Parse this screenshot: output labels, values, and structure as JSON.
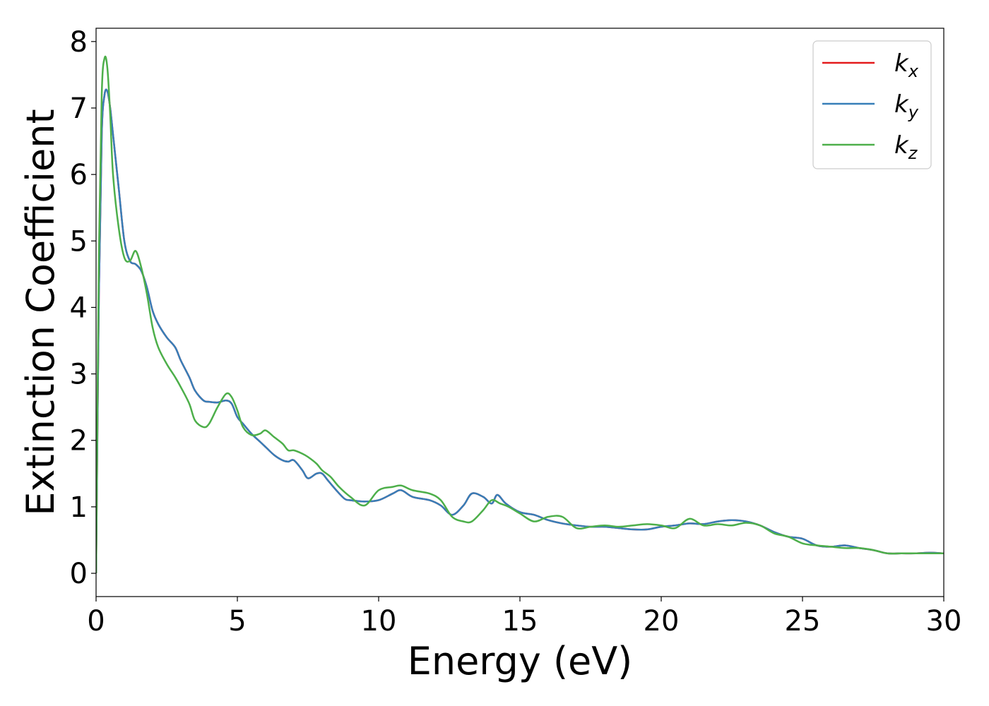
{
  "chart_data": {
    "type": "line",
    "title": "",
    "xlabel": "Energy (eV)",
    "ylabel": "Extinction Coefficient",
    "xlim": [
      0,
      30
    ],
    "ylim": [
      -0.35,
      8.2
    ],
    "xticks": [
      0,
      5,
      10,
      15,
      20,
      25,
      30
    ],
    "yticks": [
      0,
      1,
      2,
      3,
      4,
      5,
      6,
      7,
      8
    ],
    "grid": false,
    "legend_position": "top-right",
    "series": [
      {
        "name": "k",
        "subscript": "x",
        "color": "#e41a1c",
        "x": [
          0,
          0.1,
          0.2,
          0.3,
          0.4,
          0.5,
          0.6,
          0.8,
          1.0,
          1.2,
          1.4,
          1.6,
          1.8,
          2.0,
          2.2,
          2.5,
          2.8,
          3.0,
          3.3,
          3.5,
          3.8,
          4.0,
          4.3,
          4.6,
          4.8,
          5.0,
          5.2,
          5.5,
          5.8,
          6.0,
          6.3,
          6.6,
          6.8,
          7.0,
          7.3,
          7.5,
          7.8,
          8.0,
          8.2,
          8.5,
          8.8,
          9.0,
          9.5,
          10.0,
          10.5,
          10.8,
          11.2,
          11.8,
          12.2,
          12.6,
          13.0,
          13.3,
          13.7,
          14.0,
          14.2,
          14.5,
          15.0,
          15.5,
          16.0,
          16.5,
          17.0,
          17.5,
          18.0,
          18.5,
          19.0,
          19.5,
          20.0,
          20.5,
          21.0,
          21.5,
          22.0,
          22.5,
          23.0,
          23.5,
          24.0,
          24.5,
          25.0,
          25.5,
          26.0,
          26.5,
          27.0,
          27.5,
          28.0,
          28.5,
          29.0,
          29.5,
          30.0
        ],
        "y": [
          0.0,
          4.2,
          6.6,
          7.2,
          7.25,
          7.0,
          6.6,
          5.8,
          5.0,
          4.7,
          4.65,
          4.55,
          4.3,
          3.95,
          3.75,
          3.55,
          3.4,
          3.2,
          2.95,
          2.75,
          2.6,
          2.58,
          2.57,
          2.6,
          2.55,
          2.35,
          2.25,
          2.1,
          1.98,
          1.9,
          1.78,
          1.7,
          1.68,
          1.7,
          1.55,
          1.43,
          1.5,
          1.5,
          1.4,
          1.25,
          1.12,
          1.1,
          1.08,
          1.1,
          1.2,
          1.25,
          1.15,
          1.1,
          1.02,
          0.88,
          1.02,
          1.2,
          1.15,
          1.05,
          1.18,
          1.05,
          0.92,
          0.88,
          0.8,
          0.75,
          0.72,
          0.7,
          0.7,
          0.68,
          0.66,
          0.66,
          0.7,
          0.72,
          0.75,
          0.74,
          0.78,
          0.8,
          0.78,
          0.72,
          0.62,
          0.55,
          0.52,
          0.42,
          0.4,
          0.42,
          0.38,
          0.35,
          0.3,
          0.3,
          0.3,
          0.31,
          0.3
        ]
      },
      {
        "name": "k",
        "subscript": "y",
        "color": "#377eb8",
        "x": [
          0,
          0.1,
          0.2,
          0.3,
          0.4,
          0.5,
          0.6,
          0.8,
          1.0,
          1.2,
          1.4,
          1.6,
          1.8,
          2.0,
          2.2,
          2.5,
          2.8,
          3.0,
          3.3,
          3.5,
          3.8,
          4.0,
          4.3,
          4.6,
          4.8,
          5.0,
          5.2,
          5.5,
          5.8,
          6.0,
          6.3,
          6.6,
          6.8,
          7.0,
          7.3,
          7.5,
          7.8,
          8.0,
          8.2,
          8.5,
          8.8,
          9.0,
          9.5,
          10.0,
          10.5,
          10.8,
          11.2,
          11.8,
          12.2,
          12.6,
          13.0,
          13.3,
          13.7,
          14.0,
          14.2,
          14.5,
          15.0,
          15.5,
          16.0,
          16.5,
          17.0,
          17.5,
          18.0,
          18.5,
          19.0,
          19.5,
          20.0,
          20.5,
          21.0,
          21.5,
          22.0,
          22.5,
          23.0,
          23.5,
          24.0,
          24.5,
          25.0,
          25.5,
          26.0,
          26.5,
          27.0,
          27.5,
          28.0,
          28.5,
          29.0,
          29.5,
          30.0
        ],
        "y": [
          0.0,
          4.2,
          6.6,
          7.2,
          7.25,
          7.0,
          6.6,
          5.8,
          5.0,
          4.7,
          4.65,
          4.55,
          4.3,
          3.95,
          3.75,
          3.55,
          3.4,
          3.2,
          2.95,
          2.75,
          2.6,
          2.58,
          2.57,
          2.6,
          2.55,
          2.35,
          2.25,
          2.1,
          1.98,
          1.9,
          1.78,
          1.7,
          1.68,
          1.7,
          1.55,
          1.43,
          1.5,
          1.5,
          1.4,
          1.25,
          1.12,
          1.1,
          1.08,
          1.1,
          1.2,
          1.25,
          1.15,
          1.1,
          1.02,
          0.88,
          1.02,
          1.2,
          1.15,
          1.05,
          1.18,
          1.05,
          0.92,
          0.88,
          0.8,
          0.75,
          0.72,
          0.7,
          0.7,
          0.68,
          0.66,
          0.66,
          0.7,
          0.72,
          0.75,
          0.74,
          0.78,
          0.8,
          0.78,
          0.72,
          0.62,
          0.55,
          0.52,
          0.42,
          0.4,
          0.42,
          0.38,
          0.35,
          0.3,
          0.3,
          0.3,
          0.31,
          0.3
        ]
      },
      {
        "name": "k",
        "subscript": "z",
        "color": "#4daf4a",
        "x": [
          0,
          0.1,
          0.2,
          0.3,
          0.4,
          0.5,
          0.6,
          0.8,
          1.0,
          1.2,
          1.4,
          1.6,
          1.8,
          2.0,
          2.2,
          2.5,
          2.8,
          3.0,
          3.3,
          3.5,
          3.8,
          4.0,
          4.3,
          4.6,
          4.8,
          5.0,
          5.2,
          5.5,
          5.8,
          6.0,
          6.3,
          6.6,
          6.8,
          7.0,
          7.3,
          7.5,
          7.8,
          8.0,
          8.3,
          8.6,
          9.0,
          9.5,
          10.0,
          10.5,
          10.8,
          11.2,
          11.8,
          12.2,
          12.6,
          13.0,
          13.3,
          13.7,
          14.0,
          14.3,
          14.6,
          15.0,
          15.5,
          16.0,
          16.5,
          17.0,
          17.5,
          18.0,
          18.5,
          19.0,
          19.5,
          20.0,
          20.5,
          21.0,
          21.5,
          22.0,
          22.5,
          23.0,
          23.5,
          24.0,
          24.5,
          25.0,
          25.5,
          26.0,
          26.5,
          27.0,
          27.5,
          28.0,
          28.5,
          29.0,
          29.5,
          30.0
        ],
        "y": [
          0.0,
          4.8,
          7.2,
          7.75,
          7.6,
          6.9,
          6.0,
          5.2,
          4.75,
          4.7,
          4.85,
          4.6,
          4.2,
          3.7,
          3.4,
          3.15,
          2.95,
          2.8,
          2.55,
          2.3,
          2.2,
          2.25,
          2.5,
          2.7,
          2.65,
          2.45,
          2.2,
          2.08,
          2.1,
          2.15,
          2.05,
          1.95,
          1.85,
          1.85,
          1.8,
          1.75,
          1.65,
          1.55,
          1.45,
          1.3,
          1.15,
          1.02,
          1.25,
          1.3,
          1.32,
          1.25,
          1.2,
          1.1,
          0.85,
          0.78,
          0.78,
          0.95,
          1.1,
          1.05,
          1.0,
          0.9,
          0.78,
          0.85,
          0.85,
          0.68,
          0.7,
          0.72,
          0.7,
          0.72,
          0.74,
          0.72,
          0.68,
          0.82,
          0.72,
          0.74,
          0.72,
          0.76,
          0.72,
          0.6,
          0.55,
          0.45,
          0.42,
          0.4,
          0.38,
          0.38,
          0.35,
          0.3,
          0.3,
          0.3,
          0.3,
          0.3
        ]
      }
    ]
  }
}
